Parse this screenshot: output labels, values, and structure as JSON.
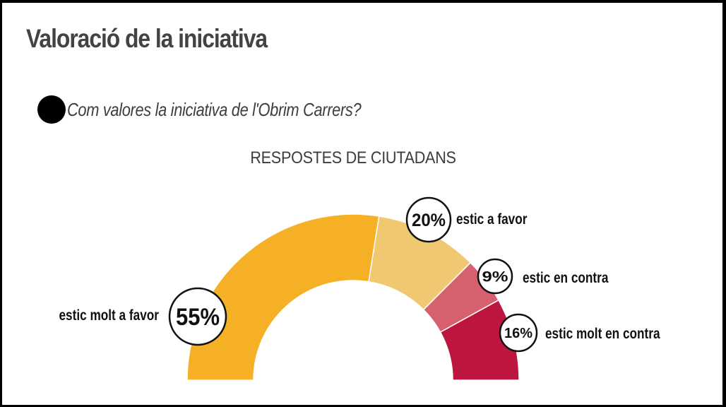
{
  "title": "Valoració de la iniciativa",
  "question": "Com valores la iniciativa de l'Obrim Carrers?",
  "chart_data": {
    "type": "pie",
    "variant": "semi-donut",
    "title": "RESPOSTES DE CIUTADANS",
    "slices": [
      {
        "label": "estic molt a favor",
        "value": 55,
        "value_label": "55%",
        "color": "#F5B026"
      },
      {
        "label": "estic a favor",
        "value": 20,
        "value_label": "20%",
        "color": "#F0C872"
      },
      {
        "label": "estic en contra",
        "value": 9,
        "value_label": "9%",
        "color": "#D7606E"
      },
      {
        "label": "estic molt en contra",
        "value": 16,
        "value_label": "16%",
        "color": "#BC163F"
      }
    ],
    "legend": "inline-labels"
  }
}
